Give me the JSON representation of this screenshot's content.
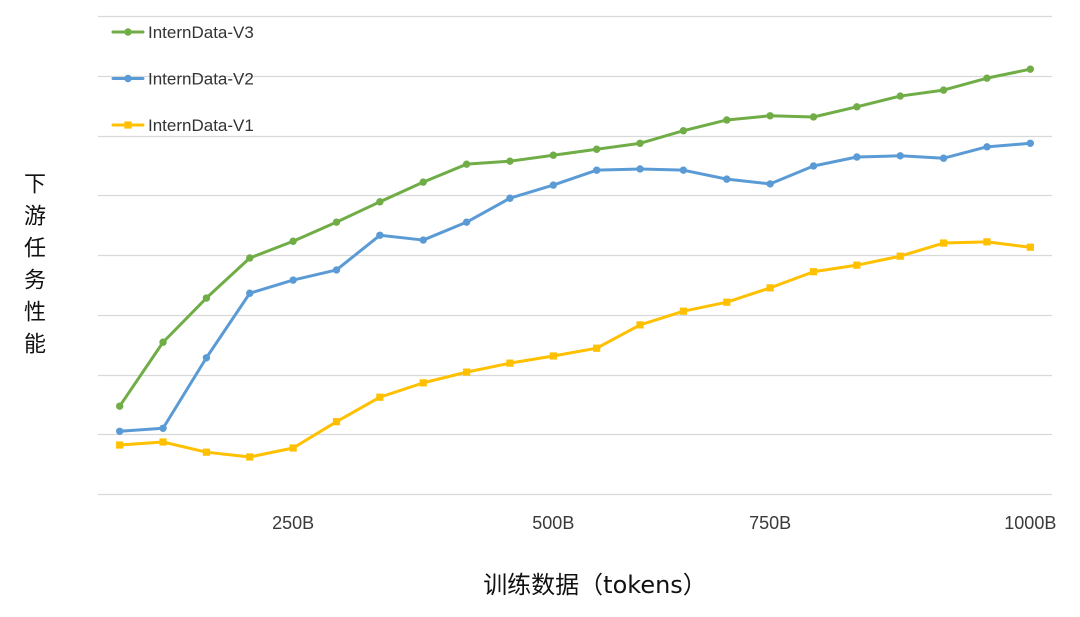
{
  "chart_data": {
    "type": "line",
    "xlabel": "训练数据（tokens）",
    "ylabel": "下游任务性能",
    "x": [
      1,
      2,
      3,
      4,
      5,
      6,
      7,
      8,
      9,
      10,
      11,
      12,
      13,
      14,
      15,
      16,
      17,
      18,
      19,
      20,
      21,
      22
    ],
    "x_ticks": [
      {
        "x": 5,
        "label": "250B"
      },
      {
        "x": 11,
        "label": "500B"
      },
      {
        "x": 16,
        "label": "750B"
      },
      {
        "x": 22,
        "label": "1000B"
      }
    ],
    "xlim": [
      0.5,
      22.5
    ],
    "ylim": [
      0,
      8
    ],
    "y_grid_step": 1,
    "grid": true,
    "legend_position": "top-left",
    "series": [
      {
        "name": "InternData-V3",
        "color": "#70AD47",
        "marker": "circle",
        "values": [
          1.47,
          2.54,
          3.28,
          3.95,
          4.23,
          4.55,
          4.89,
          5.22,
          5.52,
          5.57,
          5.67,
          5.77,
          5.87,
          6.08,
          6.26,
          6.33,
          6.31,
          6.48,
          6.66,
          6.76,
          6.96,
          7.11
        ]
      },
      {
        "name": "InternData-V2",
        "color": "#5B9BD5",
        "marker": "circle",
        "values": [
          1.05,
          1.1,
          2.28,
          3.36,
          3.58,
          3.75,
          4.33,
          4.25,
          4.55,
          4.95,
          5.17,
          5.42,
          5.44,
          5.42,
          5.27,
          5.19,
          5.49,
          5.64,
          5.66,
          5.62,
          5.81,
          5.87
        ]
      },
      {
        "name": "InternData-V1",
        "color": "#FFC000",
        "marker": "square",
        "values": [
          0.82,
          0.87,
          0.7,
          0.62,
          0.77,
          1.21,
          1.62,
          1.86,
          2.04,
          2.19,
          2.31,
          2.44,
          2.83,
          3.06,
          3.21,
          3.45,
          3.72,
          3.83,
          3.98,
          4.2,
          4.22,
          4.13
        ]
      }
    ]
  }
}
